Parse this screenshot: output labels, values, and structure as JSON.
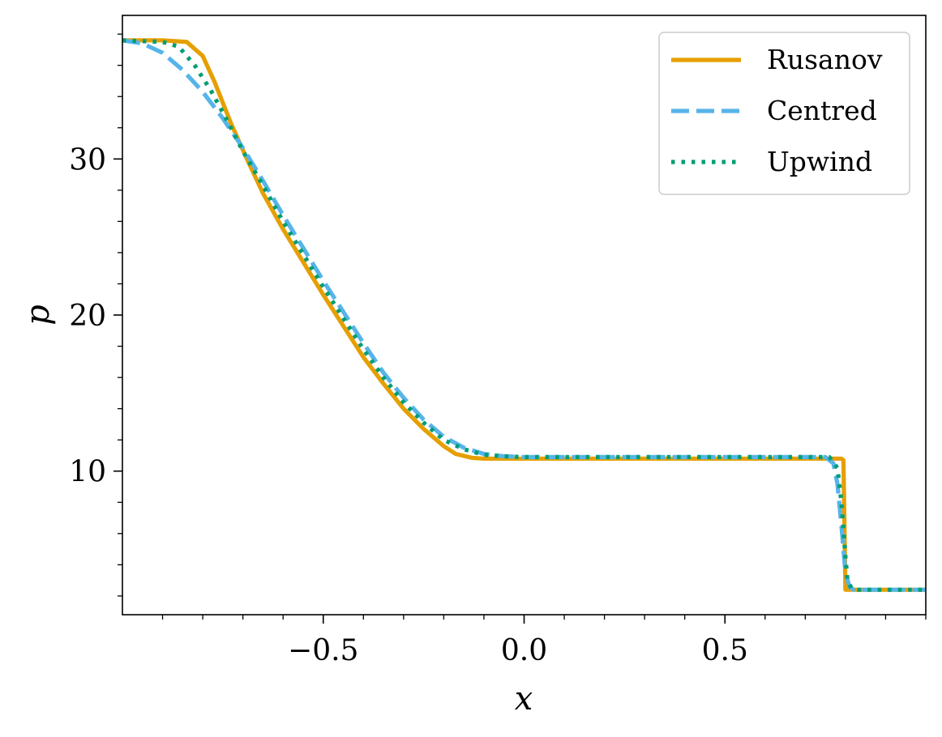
{
  "chart_data": {
    "type": "line",
    "xlabel": "x",
    "ylabel": "p",
    "xlim": [
      -1.0,
      1.0
    ],
    "ylim": [
      0.8,
      39.2
    ],
    "xticks": [
      -0.5,
      0.0,
      0.5
    ],
    "xtick_labels": [
      "−0.5",
      "0.0",
      "0.5"
    ],
    "yticks": [
      10,
      20,
      30
    ],
    "ytick_labels": [
      "10",
      "20",
      "30"
    ],
    "x_minor_step": 0.1,
    "y_minor_step": 2,
    "grid": false,
    "legend": {
      "position": "top-right",
      "entries": [
        "Rusanov",
        "Centred",
        "Upwind"
      ]
    },
    "series": [
      {
        "name": "Rusanov",
        "color": "#E69F00",
        "style": "solid",
        "points": [
          [
            -1.0,
            37.6
          ],
          [
            -0.9,
            37.6
          ],
          [
            -0.84,
            37.5
          ],
          [
            -0.8,
            36.6
          ],
          [
            -0.77,
            34.9
          ],
          [
            -0.73,
            32.3
          ],
          [
            -0.69,
            30.0
          ],
          [
            -0.65,
            27.8
          ],
          [
            -0.6,
            25.5
          ],
          [
            -0.55,
            23.4
          ],
          [
            -0.5,
            21.3
          ],
          [
            -0.45,
            19.3
          ],
          [
            -0.4,
            17.3
          ],
          [
            -0.35,
            15.6
          ],
          [
            -0.3,
            14.0
          ],
          [
            -0.25,
            12.7
          ],
          [
            -0.2,
            11.6
          ],
          [
            -0.17,
            11.1
          ],
          [
            -0.13,
            10.85
          ],
          [
            -0.1,
            10.8
          ],
          [
            0.0,
            10.8
          ],
          [
            0.5,
            10.8
          ],
          [
            0.79,
            10.8
          ],
          [
            0.795,
            10.7
          ],
          [
            0.8,
            2.4
          ],
          [
            1.0,
            2.4
          ]
        ]
      },
      {
        "name": "Centred",
        "color": "#56B4E9",
        "style": "dashed",
        "points": [
          [
            -1.0,
            37.6
          ],
          [
            -0.95,
            37.4
          ],
          [
            -0.9,
            36.8
          ],
          [
            -0.85,
            35.7
          ],
          [
            -0.8,
            34.3
          ],
          [
            -0.75,
            32.6
          ],
          [
            -0.7,
            30.7
          ],
          [
            -0.65,
            28.6
          ],
          [
            -0.6,
            26.4
          ],
          [
            -0.55,
            24.3
          ],
          [
            -0.5,
            22.2
          ],
          [
            -0.45,
            20.2
          ],
          [
            -0.4,
            18.2
          ],
          [
            -0.35,
            16.3
          ],
          [
            -0.3,
            14.7
          ],
          [
            -0.25,
            13.3
          ],
          [
            -0.2,
            12.2
          ],
          [
            -0.15,
            11.5
          ],
          [
            -0.1,
            11.1
          ],
          [
            -0.05,
            10.95
          ],
          [
            0.0,
            10.9
          ],
          [
            0.5,
            10.9
          ],
          [
            0.75,
            10.9
          ],
          [
            0.77,
            10.5
          ],
          [
            0.78,
            9.2
          ],
          [
            0.79,
            6.5
          ],
          [
            0.8,
            3.5
          ],
          [
            0.81,
            2.6
          ],
          [
            0.82,
            2.4
          ],
          [
            1.0,
            2.4
          ]
        ]
      },
      {
        "name": "Upwind",
        "color": "#009E73",
        "style": "dotted",
        "points": [
          [
            -1.0,
            37.6
          ],
          [
            -0.9,
            37.5
          ],
          [
            -0.86,
            37.2
          ],
          [
            -0.82,
            36.0
          ],
          [
            -0.78,
            34.4
          ],
          [
            -0.74,
            32.5
          ],
          [
            -0.7,
            30.5
          ],
          [
            -0.65,
            28.3
          ],
          [
            -0.6,
            26.0
          ],
          [
            -0.55,
            23.9
          ],
          [
            -0.5,
            21.8
          ],
          [
            -0.45,
            19.8
          ],
          [
            -0.4,
            17.8
          ],
          [
            -0.35,
            16.0
          ],
          [
            -0.3,
            14.4
          ],
          [
            -0.25,
            13.1
          ],
          [
            -0.2,
            12.0
          ],
          [
            -0.15,
            11.4
          ],
          [
            -0.1,
            11.05
          ],
          [
            -0.05,
            10.95
          ],
          [
            0.0,
            10.9
          ],
          [
            0.5,
            10.9
          ],
          [
            0.76,
            10.9
          ],
          [
            0.78,
            10.2
          ],
          [
            0.79,
            8.0
          ],
          [
            0.8,
            4.5
          ],
          [
            0.805,
            3.0
          ],
          [
            0.815,
            2.5
          ],
          [
            0.83,
            2.4
          ],
          [
            1.0,
            2.4
          ]
        ]
      }
    ]
  }
}
